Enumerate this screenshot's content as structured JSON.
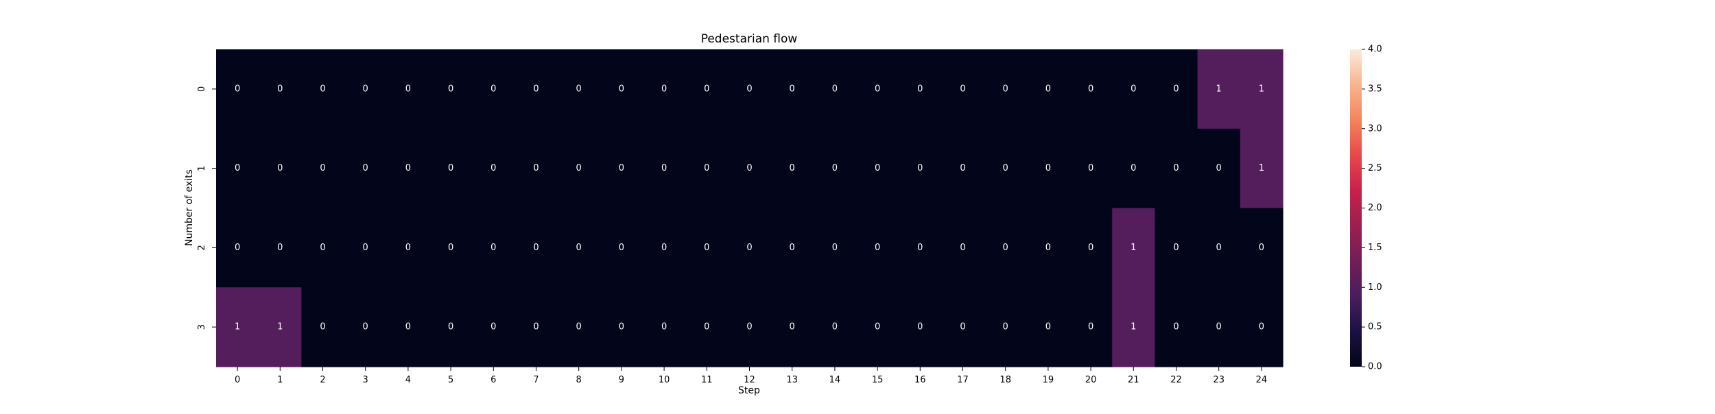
{
  "chart_data": {
    "type": "heatmap",
    "title": "Pedestarian flow",
    "xlabel": "Step",
    "ylabel": "Number of exits",
    "x": [
      "0",
      "1",
      "2",
      "3",
      "4",
      "5",
      "6",
      "7",
      "8",
      "9",
      "10",
      "11",
      "12",
      "13",
      "14",
      "15",
      "16",
      "17",
      "18",
      "19",
      "20",
      "21",
      "22",
      "23",
      "24"
    ],
    "y": [
      "0",
      "1",
      "2",
      "3"
    ],
    "values": [
      [
        0,
        0,
        0,
        0,
        0,
        0,
        0,
        0,
        0,
        0,
        0,
        0,
        0,
        0,
        0,
        0,
        0,
        0,
        0,
        0,
        0,
        0,
        0,
        1,
        1
      ],
      [
        0,
        0,
        0,
        0,
        0,
        0,
        0,
        0,
        0,
        0,
        0,
        0,
        0,
        0,
        0,
        0,
        0,
        0,
        0,
        0,
        0,
        0,
        0,
        0,
        1
      ],
      [
        0,
        0,
        0,
        0,
        0,
        0,
        0,
        0,
        0,
        0,
        0,
        0,
        0,
        0,
        0,
        0,
        0,
        0,
        0,
        0,
        0,
        1,
        0,
        0,
        0
      ],
      [
        1,
        1,
        0,
        0,
        0,
        0,
        0,
        0,
        0,
        0,
        0,
        0,
        0,
        0,
        0,
        0,
        0,
        0,
        0,
        0,
        0,
        1,
        0,
        0,
        0
      ]
    ],
    "colorbar": {
      "range": [
        0,
        4
      ],
      "ticks": [
        "0.0",
        "0.5",
        "1.0",
        "1.5",
        "2.0",
        "2.5",
        "3.0",
        "3.5",
        "4.0"
      ],
      "tick_values": [
        0,
        0.5,
        1,
        1.5,
        2,
        2.5,
        3,
        3.5,
        4
      ]
    },
    "colormap": {
      "name": "rocket",
      "stops": [
        "#03051a",
        "#1c1044",
        "#4a1d5e",
        "#701f57",
        "#9c1f50",
        "#c8214b",
        "#e8484a",
        "#f3845f",
        "#f6b58e",
        "#faebdd"
      ]
    },
    "annotations": true
  }
}
